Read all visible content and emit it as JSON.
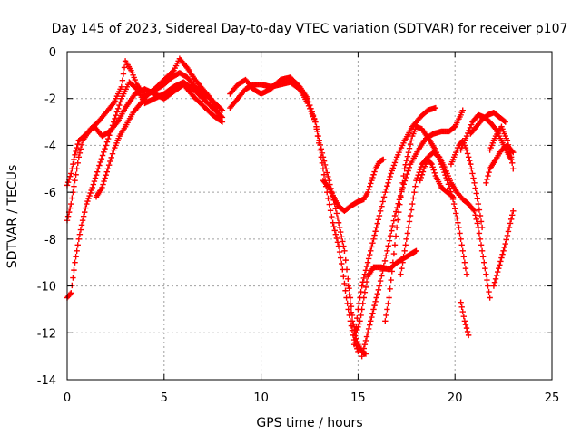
{
  "chart_data": {
    "type": "scatter",
    "title": "Day 145 of 2023, Sidereal Day-to-day VTEC variation (SDTVAR) for receiver p107",
    "xlabel": "GPS time / hours",
    "ylabel": "SDTVAR / TECUs",
    "xlim": [
      0,
      25
    ],
    "ylim": [
      -14,
      0
    ],
    "xticks": [
      0,
      5,
      10,
      15,
      20,
      25
    ],
    "yticks": [
      0,
      -2,
      -4,
      -6,
      -8,
      -10,
      -12,
      -14
    ],
    "grid": true,
    "marker": "plus",
    "color": "#ff0000",
    "series": [
      {
        "points": [
          [
            0.0,
            -10.5
          ],
          [
            0.2,
            -10.3
          ],
          [
            0.4,
            -9.0
          ],
          [
            0.6,
            -8.0
          ],
          [
            0.8,
            -7.2
          ],
          [
            1.0,
            -6.5
          ],
          [
            1.3,
            -5.8
          ],
          [
            1.6,
            -5.0
          ],
          [
            2.0,
            -4.0
          ],
          [
            2.4,
            -3.0
          ],
          [
            2.8,
            -2.0
          ],
          [
            3.2,
            -1.3
          ],
          [
            3.6,
            -1.6
          ],
          [
            4.0,
            -2.2
          ],
          [
            4.5,
            -2.0
          ],
          [
            5.0,
            -1.8
          ],
          [
            5.5,
            -1.5
          ],
          [
            6.0,
            -1.3
          ],
          [
            6.5,
            -1.6
          ],
          [
            7.0,
            -2.0
          ],
          [
            7.5,
            -2.4
          ],
          [
            8.0,
            -2.8
          ]
        ]
      },
      {
        "points": [
          [
            0.0,
            -7.2
          ],
          [
            0.2,
            -6.5
          ],
          [
            0.4,
            -5.5
          ],
          [
            0.6,
            -4.5
          ],
          [
            0.8,
            -3.8
          ],
          [
            1.2,
            -3.3
          ],
          [
            1.6,
            -3.0
          ],
          [
            2.0,
            -2.6
          ],
          [
            2.4,
            -2.2
          ],
          [
            2.8,
            -1.5
          ],
          [
            3.0,
            -0.4
          ],
          [
            3.3,
            -0.8
          ],
          [
            3.6,
            -1.4
          ],
          [
            4.0,
            -1.9
          ],
          [
            4.5,
            -1.6
          ],
          [
            5.0,
            -1.2
          ],
          [
            5.5,
            -0.8
          ],
          [
            5.8,
            -0.3
          ],
          [
            6.2,
            -0.7
          ],
          [
            6.6,
            -1.2
          ],
          [
            7.0,
            -1.6
          ],
          [
            7.5,
            -2.1
          ],
          [
            8.0,
            -2.5
          ]
        ]
      },
      {
        "points": [
          [
            0.0,
            -5.7
          ],
          [
            0.2,
            -5.2
          ],
          [
            0.4,
            -4.4
          ],
          [
            0.6,
            -3.8
          ],
          [
            1.0,
            -3.5
          ],
          [
            1.4,
            -3.2
          ],
          [
            1.8,
            -3.6
          ],
          [
            2.2,
            -3.4
          ],
          [
            2.6,
            -3.0
          ],
          [
            3.0,
            -2.4
          ],
          [
            3.5,
            -1.8
          ],
          [
            4.0,
            -1.6
          ],
          [
            4.5,
            -1.8
          ],
          [
            5.0,
            -2.0
          ],
          [
            5.5,
            -1.7
          ],
          [
            6.0,
            -1.4
          ],
          [
            6.5,
            -1.9
          ],
          [
            7.0,
            -2.3
          ],
          [
            7.5,
            -2.7
          ],
          [
            8.0,
            -3.0
          ]
        ]
      },
      {
        "points": [
          [
            1.5,
            -6.2
          ],
          [
            1.8,
            -5.8
          ],
          [
            2.1,
            -5.0
          ],
          [
            2.4,
            -4.2
          ],
          [
            2.7,
            -3.6
          ],
          [
            3.0,
            -3.2
          ],
          [
            3.4,
            -2.6
          ],
          [
            3.8,
            -2.2
          ],
          [
            4.2,
            -1.8
          ],
          [
            4.6,
            -1.6
          ],
          [
            5.0,
            -1.4
          ],
          [
            5.4,
            -1.1
          ],
          [
            5.8,
            -0.9
          ],
          [
            6.2,
            -1.1
          ],
          [
            6.6,
            -1.5
          ],
          [
            7.0,
            -1.8
          ],
          [
            7.4,
            -2.0
          ],
          [
            7.8,
            -2.6
          ]
        ]
      },
      {
        "points": [
          [
            8.4,
            -2.4
          ],
          [
            8.8,
            -2.0
          ],
          [
            9.2,
            -1.6
          ],
          [
            9.6,
            -1.4
          ],
          [
            10.0,
            -1.4
          ],
          [
            10.5,
            -1.5
          ],
          [
            11.0,
            -1.4
          ],
          [
            11.5,
            -1.3
          ],
          [
            12.0,
            -1.6
          ],
          [
            12.4,
            -2.2
          ],
          [
            12.8,
            -3.0
          ],
          [
            13.0,
            -3.8
          ],
          [
            13.2,
            -4.5
          ],
          [
            13.5,
            -5.5
          ],
          [
            13.8,
            -6.5
          ],
          [
            14.0,
            -7.3
          ],
          [
            14.3,
            -8.5
          ],
          [
            14.6,
            -10.5
          ],
          [
            14.8,
            -12.0
          ],
          [
            15.0,
            -12.5
          ],
          [
            15.2,
            -12.8
          ],
          [
            15.4,
            -12.9
          ]
        ]
      },
      {
        "points": [
          [
            8.4,
            -1.8
          ],
          [
            8.8,
            -1.4
          ],
          [
            9.2,
            -1.2
          ],
          [
            9.6,
            -1.6
          ],
          [
            10.0,
            -1.8
          ],
          [
            10.5,
            -1.6
          ],
          [
            11.0,
            -1.2
          ],
          [
            11.5,
            -1.1
          ],
          [
            12.0,
            -1.5
          ],
          [
            12.4,
            -2.0
          ],
          [
            12.8,
            -3.0
          ],
          [
            13.1,
            -4.5
          ],
          [
            13.4,
            -6.0
          ],
          [
            13.7,
            -7.3
          ],
          [
            14.0,
            -8.3
          ],
          [
            14.2,
            -9.3
          ],
          [
            14.4,
            -10.5
          ],
          [
            14.6,
            -11.5
          ],
          [
            14.8,
            -12.3
          ],
          [
            15.0,
            -12.8
          ]
        ]
      },
      {
        "points": [
          [
            13.2,
            -5.5
          ],
          [
            13.5,
            -5.8
          ],
          [
            13.8,
            -6.3
          ],
          [
            14.0,
            -6.6
          ],
          [
            14.3,
            -6.8
          ],
          [
            14.6,
            -6.6
          ],
          [
            15.0,
            -6.4
          ],
          [
            15.3,
            -6.3
          ],
          [
            15.5,
            -6.0
          ],
          [
            15.7,
            -5.5
          ],
          [
            15.9,
            -5.0
          ],
          [
            16.1,
            -4.7
          ],
          [
            16.3,
            -4.6
          ]
        ]
      },
      {
        "points": [
          [
            14.5,
            -10.0
          ],
          [
            14.7,
            -11.5
          ],
          [
            14.9,
            -12.0
          ],
          [
            15.1,
            -11.5
          ],
          [
            15.3,
            -10.5
          ],
          [
            15.5,
            -9.6
          ],
          [
            15.8,
            -9.2
          ],
          [
            16.2,
            -9.2
          ],
          [
            16.6,
            -9.3
          ],
          [
            17.0,
            -9.0
          ],
          [
            17.4,
            -8.8
          ],
          [
            17.8,
            -8.6
          ],
          [
            18.0,
            -8.5
          ]
        ]
      },
      {
        "points": [
          [
            14.8,
            -12.5
          ],
          [
            15.0,
            -11.0
          ],
          [
            15.2,
            -10.0
          ],
          [
            15.5,
            -9.0
          ],
          [
            15.8,
            -8.0
          ],
          [
            16.1,
            -7.0
          ],
          [
            16.4,
            -6.0
          ],
          [
            16.7,
            -5.2
          ],
          [
            17.0,
            -4.5
          ],
          [
            17.4,
            -3.8
          ],
          [
            17.8,
            -3.2
          ],
          [
            18.2,
            -2.8
          ],
          [
            18.6,
            -2.5
          ],
          [
            19.0,
            -2.4
          ]
        ]
      },
      {
        "points": [
          [
            15.2,
            -13.0
          ],
          [
            15.5,
            -12.0
          ],
          [
            15.8,
            -11.0
          ],
          [
            16.1,
            -10.0
          ],
          [
            16.5,
            -8.5
          ],
          [
            16.9,
            -7.0
          ],
          [
            17.3,
            -5.8
          ],
          [
            17.7,
            -4.8
          ],
          [
            18.1,
            -4.2
          ],
          [
            18.5,
            -3.7
          ],
          [
            18.9,
            -3.5
          ],
          [
            19.3,
            -3.4
          ],
          [
            19.7,
            -3.4
          ],
          [
            20.0,
            -3.2
          ],
          [
            20.3,
            -2.7
          ],
          [
            20.4,
            -2.5
          ]
        ]
      },
      {
        "points": [
          [
            16.4,
            -11.5
          ],
          [
            16.6,
            -10.5
          ],
          [
            16.8,
            -9.0
          ],
          [
            17.0,
            -7.5
          ],
          [
            17.2,
            -6.2
          ],
          [
            17.4,
            -5.0
          ],
          [
            17.6,
            -4.3
          ],
          [
            17.8,
            -3.6
          ],
          [
            18.0,
            -3.2
          ],
          [
            18.3,
            -3.3
          ],
          [
            18.7,
            -3.8
          ],
          [
            19.0,
            -4.2
          ],
          [
            19.3,
            -4.8
          ],
          [
            19.6,
            -5.5
          ],
          [
            19.9,
            -6.3
          ],
          [
            20.2,
            -7.5
          ],
          [
            20.4,
            -8.5
          ],
          [
            20.6,
            -9.5
          ]
        ]
      },
      {
        "points": [
          [
            17.2,
            -9.5
          ],
          [
            17.4,
            -8.5
          ],
          [
            17.6,
            -7.5
          ],
          [
            17.8,
            -6.5
          ],
          [
            18.0,
            -5.5
          ],
          [
            18.3,
            -4.8
          ],
          [
            18.6,
            -4.5
          ],
          [
            18.9,
            -4.3
          ],
          [
            19.2,
            -4.5
          ],
          [
            19.5,
            -5.0
          ],
          [
            19.8,
            -5.6
          ],
          [
            20.1,
            -6.0
          ],
          [
            20.4,
            -6.3
          ],
          [
            20.7,
            -6.5
          ],
          [
            21.0,
            -6.8
          ],
          [
            21.2,
            -7.5
          ],
          [
            21.4,
            -8.5
          ],
          [
            21.6,
            -9.5
          ],
          [
            21.8,
            -10.5
          ]
        ]
      },
      {
        "points": [
          [
            18.2,
            -5.5
          ],
          [
            18.4,
            -5.0
          ],
          [
            18.6,
            -4.6
          ],
          [
            18.8,
            -4.8
          ],
          [
            19.0,
            -5.3
          ],
          [
            19.3,
            -5.8
          ],
          [
            19.6,
            -6.0
          ],
          [
            19.9,
            -6.2
          ]
        ]
      },
      {
        "points": [
          [
            19.8,
            -4.8
          ],
          [
            20.0,
            -4.4
          ],
          [
            20.2,
            -4.0
          ],
          [
            20.4,
            -3.8
          ],
          [
            20.6,
            -4.2
          ],
          [
            20.8,
            -4.8
          ],
          [
            21.0,
            -5.6
          ],
          [
            21.2,
            -6.5
          ],
          [
            21.4,
            -7.5
          ]
        ]
      },
      {
        "points": [
          [
            20.3,
            -10.7
          ],
          [
            20.4,
            -11.1
          ],
          [
            20.5,
            -11.5
          ],
          [
            20.6,
            -11.8
          ],
          [
            20.7,
            -12.1
          ]
        ]
      },
      {
        "points": [
          [
            20.3,
            -4.2
          ],
          [
            20.6,
            -3.6
          ],
          [
            20.9,
            -3.0
          ],
          [
            21.2,
            -2.7
          ],
          [
            21.5,
            -2.8
          ],
          [
            21.8,
            -3.0
          ],
          [
            22.1,
            -3.3
          ],
          [
            22.4,
            -3.8
          ],
          [
            22.7,
            -4.3
          ],
          [
            22.9,
            -4.6
          ]
        ]
      },
      {
        "points": [
          [
            20.8,
            -3.5
          ],
          [
            21.1,
            -3.2
          ],
          [
            21.4,
            -2.9
          ],
          [
            21.7,
            -2.7
          ],
          [
            22.0,
            -2.6
          ],
          [
            22.3,
            -2.8
          ],
          [
            22.6,
            -3.0
          ]
        ]
      },
      {
        "points": [
          [
            21.6,
            -5.6
          ],
          [
            21.8,
            -5.0
          ],
          [
            22.1,
            -4.6
          ],
          [
            22.4,
            -4.2
          ],
          [
            22.7,
            -4.0
          ],
          [
            23.0,
            -4.3
          ]
        ]
      },
      {
        "points": [
          [
            21.8,
            -4.2
          ],
          [
            22.1,
            -3.6
          ],
          [
            22.4,
            -3.2
          ],
          [
            22.7,
            -3.8
          ],
          [
            22.9,
            -4.5
          ],
          [
            23.0,
            -5.0
          ]
        ]
      },
      {
        "points": [
          [
            22.0,
            -10.0
          ],
          [
            22.2,
            -9.4
          ],
          [
            22.4,
            -8.8
          ],
          [
            22.6,
            -8.2
          ],
          [
            22.8,
            -7.5
          ],
          [
            23.0,
            -6.8
          ]
        ]
      }
    ]
  }
}
